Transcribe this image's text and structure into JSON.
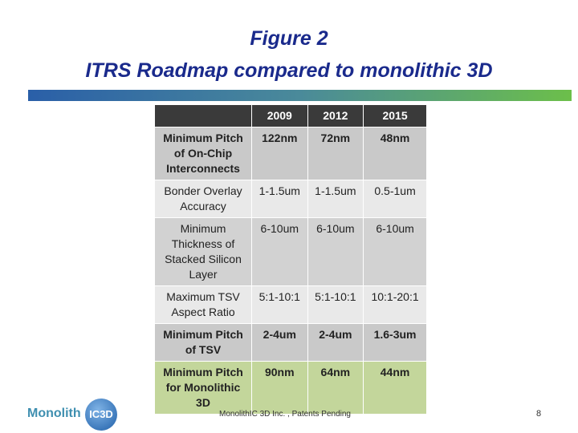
{
  "header": {
    "title_lines": [
      "Figure 2",
      "ITRS Roadmap compared to monolithic 3D"
    ]
  },
  "table": {
    "columns": [
      "",
      "2009",
      "2012",
      "2015"
    ],
    "rows": [
      [
        "Minimum Pitch of On-Chip Interconnects",
        "122nm",
        "72nm",
        "48nm"
      ],
      [
        "Bonder Overlay Accuracy",
        "1-1.5um",
        "1-1.5um",
        "0.5-1um"
      ],
      [
        "Minimum Thickness of Stacked Silicon Layer",
        "6-10um",
        "6-10um",
        "6-10um"
      ],
      [
        "Maximum TSV Aspect Ratio",
        "5:1-10:1",
        "5:1-10:1",
        "10:1-20:1"
      ],
      [
        "Minimum Pitch of TSV",
        "2-4um",
        "2-4um",
        "1.6-3um"
      ],
      [
        "Minimum Pitch for Monolithic 3D",
        "90nm",
        "64nm",
        "44nm"
      ]
    ]
  },
  "footer": {
    "logo_text": "Monolith",
    "logo_badge": "IC3D",
    "note": "MonolithIC 3D Inc. , Patents Pending",
    "page_number": "8"
  }
}
